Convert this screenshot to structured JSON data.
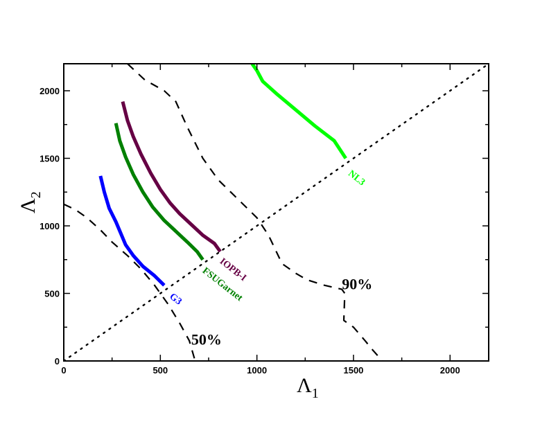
{
  "chart_data": {
    "type": "line",
    "xlabel": "Λ",
    "xlabel_sub": "1",
    "ylabel": "Λ",
    "ylabel_sub": "2",
    "xlim": [
      0,
      2200
    ],
    "ylim": [
      0,
      2200
    ],
    "x_ticks": [
      0,
      500,
      1000,
      1500,
      2000
    ],
    "y_ticks": [
      0,
      500,
      1000,
      1500,
      2000
    ],
    "x_tick_labels": [
      "0",
      "500",
      "1000",
      "1500",
      "2000"
    ],
    "y_tick_labels": [
      "0",
      "500",
      "1000",
      "1500",
      "2000"
    ],
    "grid": false,
    "series": [
      {
        "name": "NL3",
        "color": "#00ff00",
        "style": "solid",
        "points": [
          [
            975,
            2200
          ],
          [
            1000,
            2150
          ],
          [
            1030,
            2070
          ],
          [
            1100,
            1980
          ],
          [
            1200,
            1860
          ],
          [
            1300,
            1740
          ],
          [
            1400,
            1630
          ],
          [
            1460,
            1500
          ]
        ]
      },
      {
        "name": "IOPB-I",
        "color": "#660044",
        "style": "solid",
        "points": [
          [
            305,
            1920
          ],
          [
            330,
            1780
          ],
          [
            360,
            1660
          ],
          [
            400,
            1530
          ],
          [
            450,
            1390
          ],
          [
            500,
            1270
          ],
          [
            550,
            1170
          ],
          [
            600,
            1090
          ],
          [
            660,
            1010
          ],
          [
            720,
            930
          ],
          [
            780,
            870
          ],
          [
            810,
            810
          ]
        ]
      },
      {
        "name": "FSUGarnet",
        "color": "#008000",
        "style": "solid",
        "points": [
          [
            270,
            1760
          ],
          [
            290,
            1630
          ],
          [
            320,
            1510
          ],
          [
            360,
            1380
          ],
          [
            410,
            1250
          ],
          [
            460,
            1140
          ],
          [
            520,
            1040
          ],
          [
            580,
            960
          ],
          [
            640,
            880
          ],
          [
            690,
            810
          ],
          [
            720,
            750
          ]
        ]
      },
      {
        "name": "G3",
        "color": "#0000ff",
        "style": "solid",
        "points": [
          [
            190,
            1370
          ],
          [
            210,
            1250
          ],
          [
            235,
            1130
          ],
          [
            270,
            1030
          ],
          [
            320,
            860
          ],
          [
            360,
            780
          ],
          [
            410,
            700
          ],
          [
            470,
            630
          ],
          [
            520,
            560
          ]
        ]
      },
      {
        "name": "90%",
        "color": "#000000",
        "style": "dashed",
        "points": [
          [
            330,
            2200
          ],
          [
            420,
            2080
          ],
          [
            520,
            2000
          ],
          [
            580,
            1920
          ],
          [
            640,
            1730
          ],
          [
            720,
            1500
          ],
          [
            800,
            1340
          ],
          [
            900,
            1200
          ],
          [
            1000,
            1060
          ],
          [
            1060,
            930
          ],
          [
            1130,
            720
          ],
          [
            1200,
            650
          ],
          [
            1260,
            600
          ],
          [
            1350,
            560
          ],
          [
            1440,
            530
          ],
          [
            1455,
            500
          ],
          [
            1450,
            300
          ],
          [
            1500,
            250
          ],
          [
            1560,
            150
          ],
          [
            1600,
            80
          ],
          [
            1650,
            0
          ]
        ]
      },
      {
        "name": "50%",
        "color": "#000000",
        "style": "dashed",
        "points": [
          [
            0,
            1160
          ],
          [
            60,
            1120
          ],
          [
            120,
            1060
          ],
          [
            190,
            970
          ],
          [
            250,
            880
          ],
          [
            330,
            780
          ],
          [
            400,
            680
          ],
          [
            470,
            560
          ],
          [
            540,
            420
          ],
          [
            600,
            280
          ],
          [
            650,
            150
          ],
          [
            680,
            0
          ]
        ]
      },
      {
        "name": "",
        "color": "#000000",
        "style": "dotted",
        "points": [
          [
            0,
            0
          ],
          [
            2200,
            2200
          ]
        ]
      }
    ],
    "annotations": [
      {
        "text": "NL3",
        "x": 1470,
        "y": 1380,
        "color": "#00ff00",
        "rotate": 38
      },
      {
        "text": "IOPB-I",
        "x": 805,
        "y": 730,
        "color": "#660044",
        "rotate": 38
      },
      {
        "text": "FSUGarnet",
        "x": 715,
        "y": 660,
        "color": "#008000",
        "rotate": 38
      },
      {
        "text": "G3",
        "x": 545,
        "y": 470,
        "color": "#0000ff",
        "rotate": 38
      },
      {
        "text": "90%",
        "x": 1440,
        "y": 530,
        "color": "#000000",
        "rotate": 0
      },
      {
        "text": "50%",
        "x": 660,
        "y": 120,
        "color": "#000000",
        "rotate": 0
      }
    ]
  }
}
